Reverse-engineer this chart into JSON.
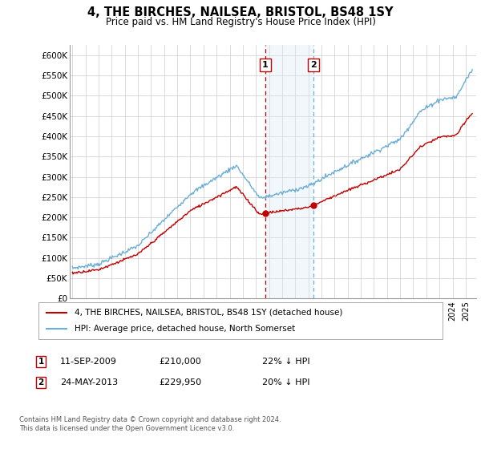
{
  "title": "4, THE BIRCHES, NAILSEA, BRISTOL, BS48 1SY",
  "subtitle": "Price paid vs. HM Land Registry's House Price Index (HPI)",
  "yticks": [
    0,
    50000,
    100000,
    150000,
    200000,
    250000,
    300000,
    350000,
    400000,
    450000,
    500000,
    550000,
    600000
  ],
  "ylim": [
    0,
    625000
  ],
  "xlim_start": 1994.8,
  "xlim_end": 2025.8,
  "transaction1_date": 2009.69,
  "transaction1_price": 210000,
  "transaction2_date": 2013.39,
  "transaction2_price": 229950,
  "hpi_color": "#6baed6",
  "price_color": "#c00000",
  "shading_color": "#dce9f5",
  "grid_color": "#cccccc",
  "legend_label1": "4, THE BIRCHES, NAILSEA, BRISTOL, BS48 1SY (detached house)",
  "legend_label2": "HPI: Average price, detached house, North Somerset",
  "footnote1_date": "11-SEP-2009",
  "footnote1_price": "£210,000",
  "footnote1_hpi": "22% ↓ HPI",
  "footnote2_date": "24-MAY-2013",
  "footnote2_price": "£229,950",
  "footnote2_hpi": "20% ↓ HPI",
  "copyright": "Contains HM Land Registry data © Crown copyright and database right 2024.\nThis data is licensed under the Open Government Licence v3.0."
}
